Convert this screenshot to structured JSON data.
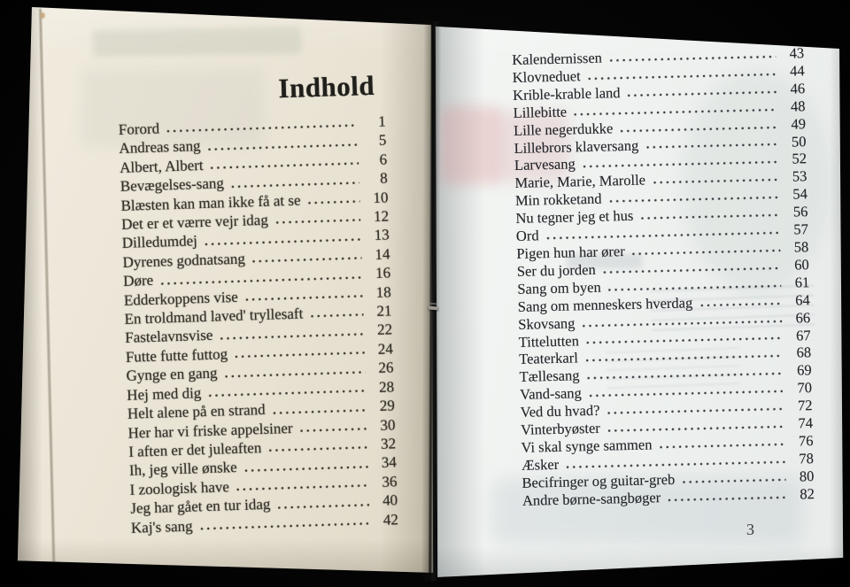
{
  "photo": {
    "background_color": "#050505"
  },
  "colors": {
    "left_paper": "#e9e3d4",
    "right_paper": "#edf0ee",
    "ink_left": "#36322a",
    "ink_right": "#25262b",
    "gutter_shadow": "#0a0a08"
  },
  "book": {
    "heading": "Indhold",
    "folio": "3",
    "left_entries": [
      {
        "title": "Forord",
        "page": "1"
      },
      {
        "title": "Andreas sang",
        "page": "5"
      },
      {
        "title": "Albert, Albert",
        "page": "6"
      },
      {
        "title": "Bevægelses-sang",
        "page": "8"
      },
      {
        "title": "Blæsten kan man ikke få at se",
        "page": "10"
      },
      {
        "title": "Det er et værre vejr idag",
        "page": "12"
      },
      {
        "title": "Dilledumdej",
        "page": "13"
      },
      {
        "title": "Dyrenes godnatsang",
        "page": "14"
      },
      {
        "title": "Døre",
        "page": "16"
      },
      {
        "title": "Edderkoppens vise",
        "page": "18"
      },
      {
        "title": "En troldmand laved' tryllesaft",
        "page": "21"
      },
      {
        "title": "Fastelavnsvise",
        "page": "22"
      },
      {
        "title": "Futte futte futtog",
        "page": "24"
      },
      {
        "title": "Gynge en gang",
        "page": "26"
      },
      {
        "title": "Hej med dig",
        "page": "28"
      },
      {
        "title": "Helt alene på en strand",
        "page": "29"
      },
      {
        "title": "Her har vi friske appelsiner",
        "page": "30"
      },
      {
        "title": "I aften er det juleaften",
        "page": "32"
      },
      {
        "title": "Ih, jeg ville ønske",
        "page": "34"
      },
      {
        "title": "I zoologisk have",
        "page": "36"
      },
      {
        "title": "Jeg har gået en tur idag",
        "page": "40"
      },
      {
        "title": "Kaj's sang",
        "page": "42"
      }
    ],
    "right_entries": [
      {
        "title": "Kalendernissen",
        "page": "43"
      },
      {
        "title": "Klovneduet",
        "page": "44"
      },
      {
        "title": "Krible-krable land",
        "page": "46"
      },
      {
        "title": "Lillebitte",
        "page": "48"
      },
      {
        "title": "Lille negerdukke",
        "page": "49"
      },
      {
        "title": "Lillebrors klaversang",
        "page": "50"
      },
      {
        "title": "Larvesang",
        "page": "52"
      },
      {
        "title": "Marie, Marie, Marolle",
        "page": "53"
      },
      {
        "title": "Min rokketand",
        "page": "54"
      },
      {
        "title": "Nu tegner jeg et hus",
        "page": "56"
      },
      {
        "title": "Ord",
        "page": "57"
      },
      {
        "title": "Pigen hun har ører",
        "page": "58"
      },
      {
        "title": "Ser du jorden",
        "page": "60"
      },
      {
        "title": "Sang om byen",
        "page": "61"
      },
      {
        "title": "Sang om menneskers hverdag",
        "page": "64"
      },
      {
        "title": "Skovsang",
        "page": "66"
      },
      {
        "title": "Tittelutten",
        "page": "67"
      },
      {
        "title": "Teaterkarl",
        "page": "68"
      },
      {
        "title": "Tællesang",
        "page": "69"
      },
      {
        "title": "Vand-sang",
        "page": "70"
      },
      {
        "title": "Ved du hvad?",
        "page": "72"
      },
      {
        "title": "Vinterbyøster",
        "page": "74"
      },
      {
        "title": "Vi skal synge sammen",
        "page": "76"
      },
      {
        "title": "Æsker",
        "page": "78"
      },
      {
        "title": "Becifringer og guitar-greb",
        "page": "80"
      },
      {
        "title": "Andre børne-sangbøger",
        "page": "82"
      }
    ]
  }
}
